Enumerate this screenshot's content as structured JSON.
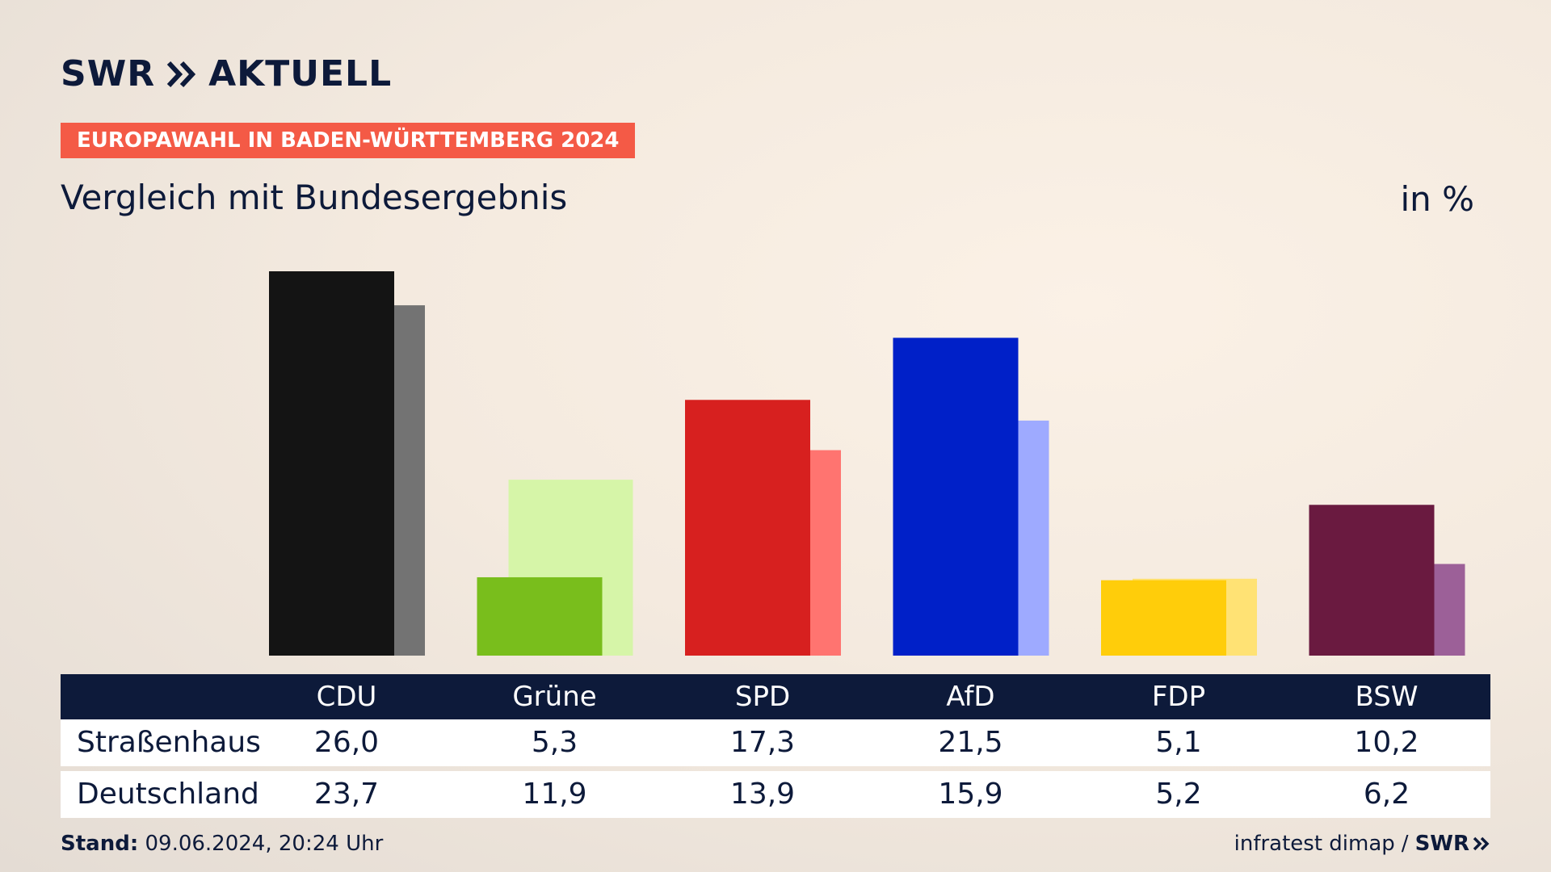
{
  "brand": {
    "name": "SWR",
    "suffix": "AKTUELL"
  },
  "badge": "EUROPAWAHL IN BADEN-WÜRTTEMBERG 2024",
  "subtitle": "Vergleich mit Bundesergebnis",
  "unit": "in %",
  "footer": {
    "stand_label": "Stand:",
    "stand_value": "09.06.2024, 20:24 Uhr",
    "source": "infratest dimap",
    "separator": "/",
    "logo": "SWR"
  },
  "table": {
    "rows": [
      {
        "label": "Straßenhaus",
        "values": [
          "26,0",
          "5,3",
          "17,3",
          "21,5",
          "5,1",
          "10,2"
        ]
      },
      {
        "label": "Deutschland",
        "values": [
          "23,7",
          "11,9",
          "13,9",
          "15,9",
          "5,2",
          "6,2"
        ]
      }
    ]
  },
  "colors": {
    "navy": "#0d1a3a",
    "badge": "#f45a46",
    "parties": {
      "CDU": {
        "primary": "#141414",
        "secondary": "#737373"
      },
      "Grüne": {
        "primary": "#79be1c",
        "secondary": "#d6f5a8"
      },
      "SPD": {
        "primary": "#d7201f",
        "secondary": "#ff7470"
      },
      "AfD": {
        "primary": "#0020c8",
        "secondary": "#9eaaff"
      },
      "FDP": {
        "primary": "#ffcd0a",
        "secondary": "#ffe274"
      },
      "BSW": {
        "primary": "#6a1a40",
        "secondary": "#9c6098"
      }
    }
  },
  "chart_data": {
    "type": "bar",
    "categories": [
      "CDU",
      "Grüne",
      "SPD",
      "AfD",
      "FDP",
      "BSW"
    ],
    "series": [
      {
        "name": "Straßenhaus",
        "values": [
          26.0,
          5.3,
          17.3,
          21.5,
          5.1,
          10.2
        ]
      },
      {
        "name": "Deutschland",
        "values": [
          23.7,
          11.9,
          13.9,
          15.9,
          5.2,
          6.2
        ]
      }
    ],
    "ylim": [
      0,
      26.0
    ],
    "grid": false,
    "legend": "none"
  }
}
